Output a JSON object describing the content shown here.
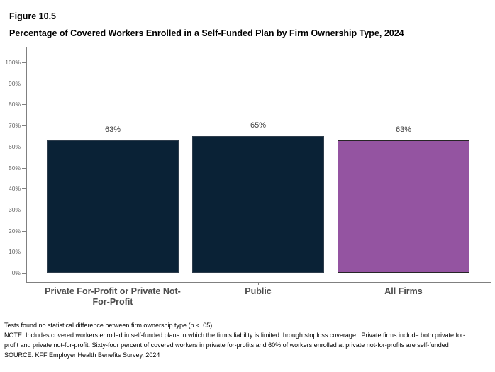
{
  "header": {
    "figure_label": "Figure 10.5",
    "title": "Percentage of Covered Workers Enrolled in a Self-Funded Plan by Firm Ownership Type, 2024"
  },
  "chart_data": {
    "type": "bar",
    "title": "Percentage of Covered Workers Enrolled in a Self-Funded Plan by Firm Ownership Type, 2024",
    "categories": [
      "Private For-Profit or Private Not-For-Profit",
      "Public",
      "All Firms"
    ],
    "values": [
      63,
      65,
      63
    ],
    "value_labels": [
      "63%",
      "65%",
      "63%"
    ],
    "colors": [
      "#0a2236",
      "#0a2236",
      "#9454a1"
    ],
    "border_colors": [
      "#2e3d4c",
      "#2e3d4c",
      "#262626"
    ],
    "xlabel": "",
    "ylabel": "",
    "ylim": [
      0,
      100
    ],
    "ytick_step": 10,
    "ytick_suffix": "%",
    "grid": false,
    "legend": "none",
    "axis_color": "#808080",
    "tick_label_color": "#666666",
    "category_label_color": "#4d4d4d",
    "value_label_color": "#3d3d3d"
  },
  "footer": {
    "tests": "Tests found no statistical difference between firm ownership type (p < .05).",
    "note": "NOTE: Includes covered workers enrolled in self-funded plans in which the firm's liability is limited through stoploss coverage.  Private firms include both private for-profit and private not-for-profit. Sixty-four percent of covered workers in private for-profits and 60% of workers enrolled at private not-for-profits are self-funded",
    "source": "SOURCE: KFF Employer Health Benefits Survey, 2024"
  }
}
